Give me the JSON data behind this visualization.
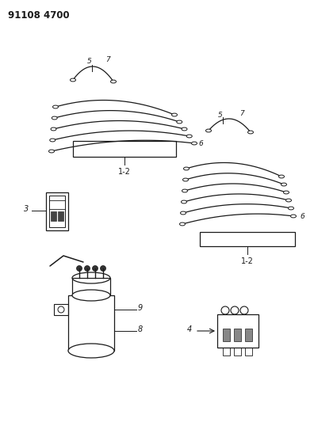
{
  "title": "91108 4700",
  "bg_color": "#ffffff",
  "line_color": "#1a1a1a",
  "fig_width": 3.96,
  "fig_height": 5.33,
  "dpi": 100,
  "labels": {
    "title": "91108 4700",
    "part3": "3",
    "part4": "4",
    "part6_left": "6",
    "part6_right": "6",
    "part8": "8",
    "part9": "9",
    "left_5": "5",
    "left_7": "7",
    "right_5": "5",
    "right_7": "7",
    "left_12": "1-2",
    "right_12": "1-2"
  }
}
